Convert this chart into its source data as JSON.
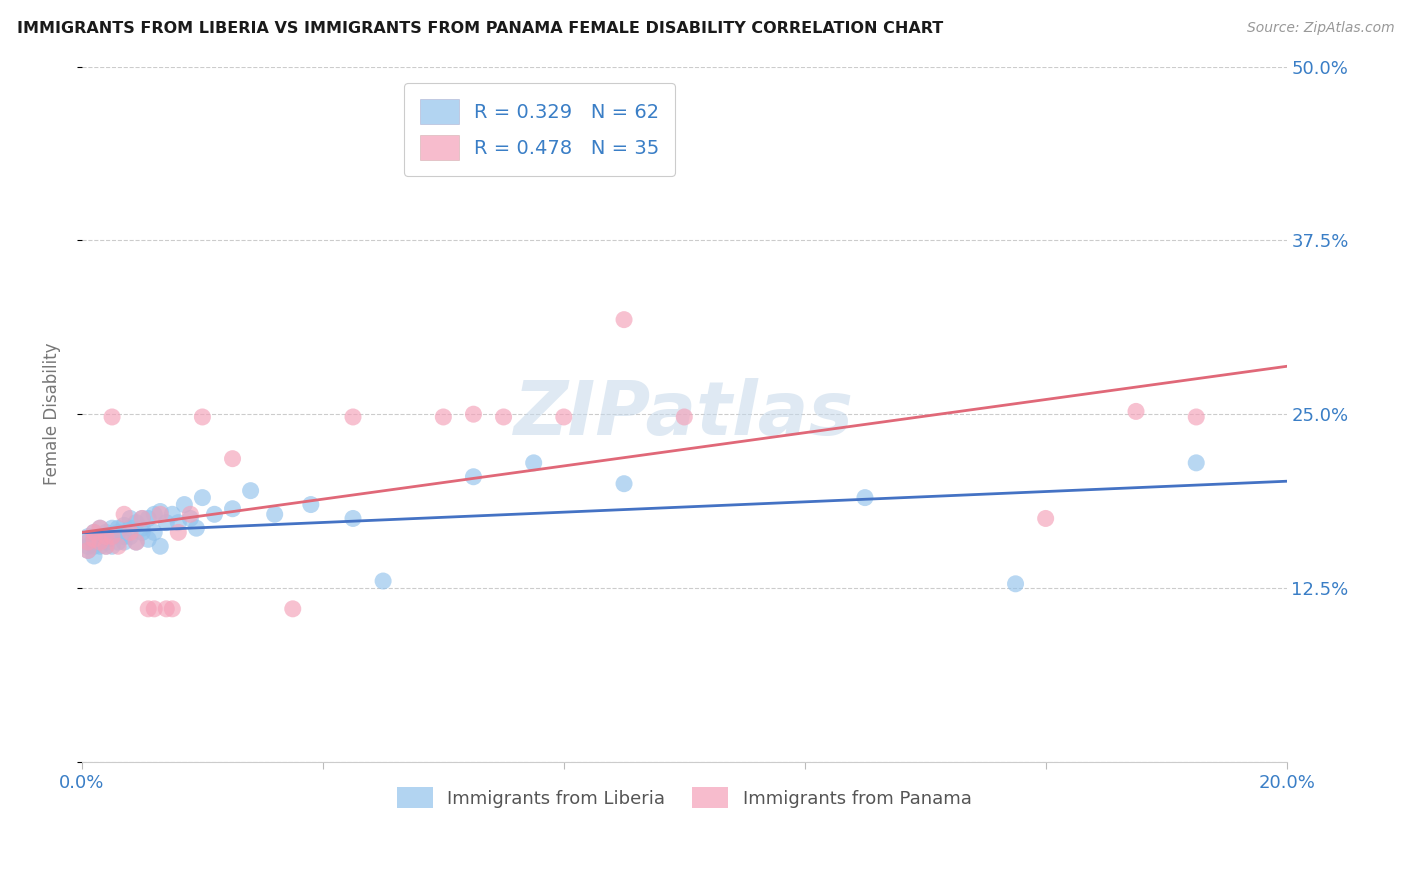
{
  "title": "IMMIGRANTS FROM LIBERIA VS IMMIGRANTS FROM PANAMA FEMALE DISABILITY CORRELATION CHART",
  "source": "Source: ZipAtlas.com",
  "ylabel": "Female Disability",
  "xlim_min": 0.0,
  "xlim_max": 0.2,
  "ylim_min": 0.0,
  "ylim_max": 0.5,
  "yticks": [
    0.0,
    0.125,
    0.25,
    0.375,
    0.5
  ],
  "ytick_labels": [
    "",
    "12.5%",
    "25.0%",
    "37.5%",
    "50.0%"
  ],
  "xticks": [
    0.0,
    0.04,
    0.08,
    0.12,
    0.16,
    0.2
  ],
  "xtick_labels": [
    "0.0%",
    "",
    "",
    "",
    "",
    "20.0%"
  ],
  "liberia_R": 0.329,
  "liberia_N": 62,
  "panama_R": 0.478,
  "panama_N": 35,
  "liberia_color": "#92C2EC",
  "panama_color": "#F4A0B8",
  "liberia_line_color": "#4472C4",
  "panama_line_color": "#E06878",
  "axis_color": "#3A7EC6",
  "background_color": "#FFFFFF",
  "grid_color": "#CCCCCC",
  "watermark": "ZIPatlas",
  "legend_label_blue": "R = 0.329   N = 62",
  "legend_label_pink": "R = 0.478   N = 35",
  "bottom_label_blue": "Immigrants from Liberia",
  "bottom_label_pink": "Immigrants from Panama",
  "liberia_x": [
    0.001,
    0.001,
    0.001,
    0.001,
    0.002,
    0.002,
    0.002,
    0.002,
    0.002,
    0.003,
    0.003,
    0.003,
    0.003,
    0.003,
    0.004,
    0.004,
    0.004,
    0.004,
    0.005,
    0.005,
    0.005,
    0.005,
    0.006,
    0.006,
    0.006,
    0.007,
    0.007,
    0.007,
    0.008,
    0.008,
    0.008,
    0.009,
    0.009,
    0.01,
    0.01,
    0.01,
    0.011,
    0.011,
    0.012,
    0.012,
    0.013,
    0.013,
    0.014,
    0.015,
    0.016,
    0.017,
    0.018,
    0.019,
    0.02,
    0.022,
    0.025,
    0.028,
    0.032,
    0.038,
    0.045,
    0.05,
    0.065,
    0.075,
    0.09,
    0.13,
    0.155,
    0.185
  ],
  "liberia_y": [
    0.152,
    0.158,
    0.162,
    0.155,
    0.148,
    0.155,
    0.16,
    0.165,
    0.158,
    0.16,
    0.155,
    0.162,
    0.158,
    0.168,
    0.16,
    0.158,
    0.165,
    0.155,
    0.162,
    0.168,
    0.155,
    0.162,
    0.168,
    0.158,
    0.165,
    0.162,
    0.17,
    0.158,
    0.168,
    0.175,
    0.162,
    0.172,
    0.158,
    0.175,
    0.165,
    0.168,
    0.175,
    0.16,
    0.178,
    0.165,
    0.18,
    0.155,
    0.172,
    0.178,
    0.172,
    0.185,
    0.175,
    0.168,
    0.19,
    0.178,
    0.182,
    0.195,
    0.178,
    0.185,
    0.175,
    0.13,
    0.205,
    0.215,
    0.2,
    0.19,
    0.128,
    0.215
  ],
  "panama_x": [
    0.001,
    0.001,
    0.002,
    0.002,
    0.003,
    0.003,
    0.004,
    0.004,
    0.005,
    0.005,
    0.006,
    0.007,
    0.008,
    0.009,
    0.01,
    0.011,
    0.012,
    0.013,
    0.014,
    0.015,
    0.016,
    0.018,
    0.02,
    0.025,
    0.035,
    0.045,
    0.06,
    0.065,
    0.07,
    0.08,
    0.09,
    0.1,
    0.16,
    0.175,
    0.185
  ],
  "panama_y": [
    0.152,
    0.158,
    0.16,
    0.165,
    0.158,
    0.168,
    0.155,
    0.162,
    0.248,
    0.162,
    0.155,
    0.178,
    0.165,
    0.158,
    0.175,
    0.11,
    0.11,
    0.178,
    0.11,
    0.11,
    0.165,
    0.178,
    0.248,
    0.218,
    0.11,
    0.248,
    0.248,
    0.25,
    0.248,
    0.248,
    0.318,
    0.248,
    0.175,
    0.252,
    0.248
  ]
}
